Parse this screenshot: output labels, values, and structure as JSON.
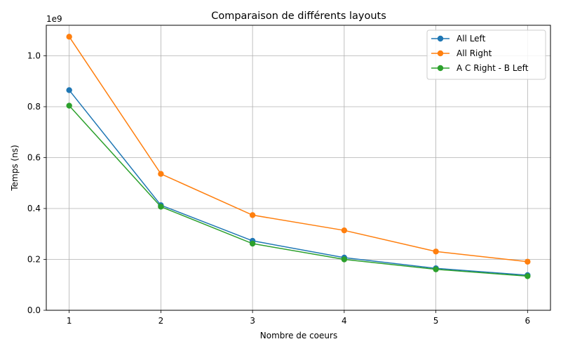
{
  "chart_data": {
    "type": "line",
    "title": "Comparaison de différents layouts",
    "xlabel": "Nombre de coeurs",
    "ylabel": "Temps (ns)",
    "y_offset_label": "1e9",
    "x": [
      1,
      2,
      3,
      4,
      5,
      6
    ],
    "xticks": [
      1,
      2,
      3,
      4,
      5,
      6
    ],
    "xlim": [
      0.75,
      6.25
    ],
    "ylim": [
      0,
      1.12
    ],
    "yticks": [
      0.0,
      0.2,
      0.4,
      0.6,
      0.8,
      1.0
    ],
    "ytick_labels": [
      "0.0",
      "0.2",
      "0.4",
      "0.6",
      "0.8",
      "1.0"
    ],
    "grid": true,
    "legend_position": "top-right",
    "series": [
      {
        "name": "All Left",
        "color": "#1f77b4",
        "values": [
          0.865,
          0.413,
          0.273,
          0.207,
          0.165,
          0.138
        ]
      },
      {
        "name": "All Right",
        "color": "#ff7f0e",
        "values": [
          1.075,
          0.536,
          0.374,
          0.314,
          0.231,
          0.191
        ]
      },
      {
        "name": "A C Right - B Left",
        "color": "#2ca02c",
        "values": [
          0.804,
          0.407,
          0.262,
          0.2,
          0.161,
          0.134
        ]
      }
    ]
  }
}
